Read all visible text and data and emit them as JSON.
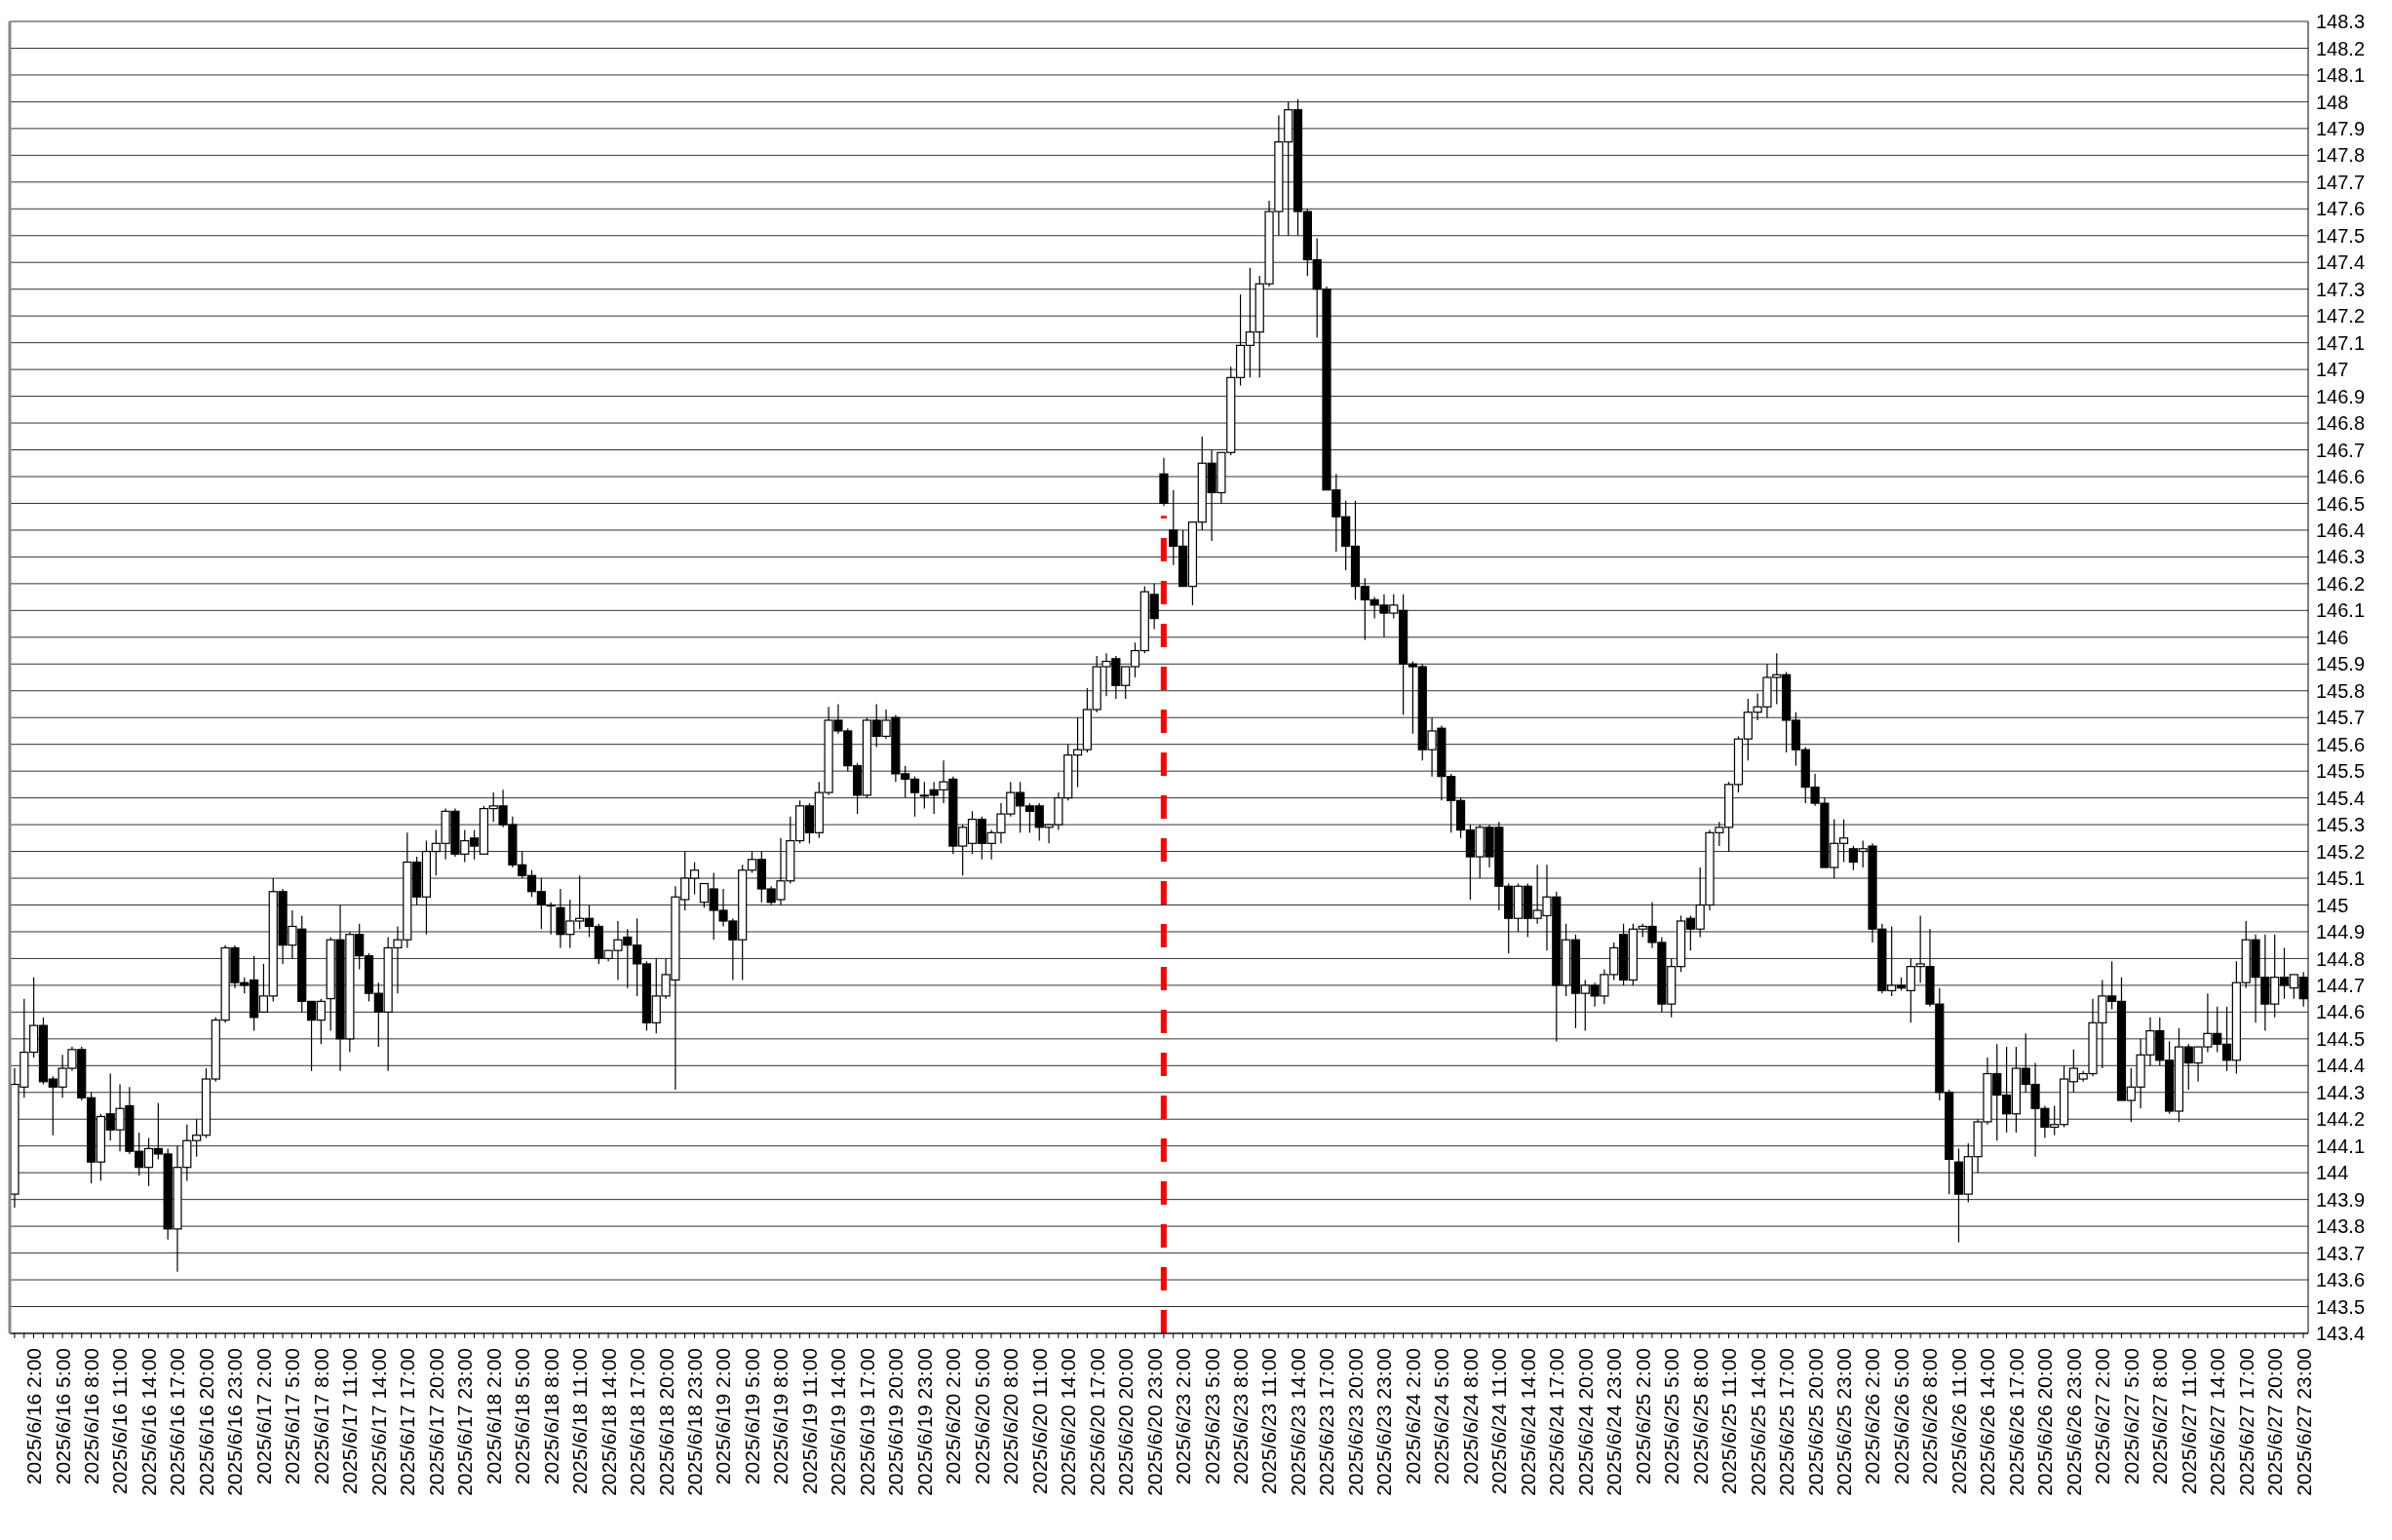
{
  "chart_data": {
    "type": "candlestick",
    "categories": [
      null,
      null,
      "2025/6/16 2:00",
      null,
      null,
      "2025/6/16 5:00",
      null,
      null,
      "2025/6/16 8:00",
      null,
      null,
      "2025/6/16 11:00",
      null,
      null,
      "2025/6/16 14:00",
      null,
      null,
      "2025/6/16 17:00",
      null,
      null,
      "2025/6/16 20:00",
      null,
      null,
      "2025/6/16 23:00",
      null,
      null,
      "2025/6/17 2:00",
      null,
      null,
      "2025/6/17 5:00",
      null,
      null,
      "2025/6/17 8:00",
      null,
      null,
      "2025/6/17 11:00",
      null,
      null,
      "2025/6/17 14:00",
      null,
      null,
      "2025/6/17 17:00",
      null,
      null,
      "2025/6/17 20:00",
      null,
      null,
      "2025/6/17 23:00",
      null,
      null,
      "2025/6/18 2:00",
      null,
      null,
      "2025/6/18 5:00",
      null,
      null,
      "2025/6/18 8:00",
      null,
      null,
      "2025/6/18 11:00",
      null,
      null,
      "2025/6/18 14:00",
      null,
      null,
      "2025/6/18 17:00",
      null,
      null,
      "2025/6/18 20:00",
      null,
      null,
      "2025/6/18 23:00",
      null,
      null,
      "2025/6/19 2:00",
      null,
      null,
      "2025/6/19 5:00",
      null,
      null,
      "2025/6/19 8:00",
      null,
      null,
      "2025/6/19 11:00",
      null,
      null,
      "2025/6/19 14:00",
      null,
      null,
      "2025/6/19 17:00",
      null,
      null,
      "2025/6/19 20:00",
      null,
      null,
      "2025/6/19 23:00",
      null,
      null,
      "2025/6/20 2:00",
      null,
      null,
      "2025/6/20 5:00",
      null,
      null,
      "2025/6/20 8:00",
      null,
      null,
      "2025/6/20 11:00",
      null,
      null,
      "2025/6/20 14:00",
      null,
      null,
      "2025/6/20 17:00",
      null,
      null,
      "2025/6/20 20:00",
      null,
      null,
      "2025/6/20 23:00",
      null,
      null,
      "2025/6/23 2:00",
      null,
      null,
      "2025/6/23 5:00",
      null,
      null,
      "2025/6/23 8:00",
      null,
      null,
      "2025/6/23 11:00",
      null,
      null,
      "2025/6/23 14:00",
      null,
      null,
      "2025/6/23 17:00",
      null,
      null,
      "2025/6/23 20:00",
      null,
      null,
      "2025/6/23 23:00",
      null,
      null,
      "2025/6/24 2:00",
      null,
      null,
      "2025/6/24 5:00",
      null,
      null,
      "2025/6/24 8:00",
      null,
      null,
      "2025/6/24 11:00",
      null,
      null,
      "2025/6/24 14:00",
      null,
      null,
      "2025/6/24 17:00",
      null,
      null,
      "2025/6/24 20:00",
      null,
      null,
      "2025/6/24 23:00",
      null,
      null,
      "2025/6/25 2:00",
      null,
      null,
      "2025/6/25 5:00",
      null,
      null,
      "2025/6/25 8:00",
      null,
      null,
      "2025/6/25 11:00",
      null,
      null,
      "2025/6/25 14:00",
      null,
      null,
      "2025/6/25 17:00",
      null,
      null,
      "2025/6/25 20:00",
      null,
      null,
      "2025/6/25 23:00",
      null,
      null,
      "2025/6/26 2:00",
      null,
      null,
      "2025/6/26 5:00",
      null,
      null,
      "2025/6/26 8:00",
      null,
      null,
      "2025/6/26 11:00",
      null,
      null,
      "2025/6/26 14:00",
      null,
      null,
      "2025/6/26 17:00",
      null,
      null,
      "2025/6/26 20:00",
      null,
      null,
      "2025/6/26 23:00",
      null,
      null,
      "2025/6/27 2:00",
      null,
      null,
      "2025/6/27 5:00",
      null,
      null,
      "2025/6/27 8:00",
      null,
      null,
      "2025/6/27 11:00",
      null,
      null,
      "2025/6/27 14:00",
      null,
      null,
      "2025/6/27 17:00",
      null,
      null,
      "2025/6/27 20:00",
      null,
      null,
      "2025/6/27 23:00"
    ],
    "ohlc": [
      [
        143.92,
        144.39,
        143.87,
        144.33
      ],
      [
        144.32,
        144.65,
        144.28,
        144.45
      ],
      [
        144.45,
        144.73,
        144.43,
        144.55
      ],
      [
        144.55,
        144.58,
        144.33,
        144.34
      ],
      [
        144.35,
        144.36,
        144.14,
        144.32
      ],
      [
        144.32,
        144.44,
        144.28,
        144.39
      ],
      [
        144.39,
        144.47,
        144.38,
        144.46
      ],
      [
        144.46,
        144.47,
        144.27,
        144.28
      ],
      [
        144.28,
        144.3,
        143.96,
        144.04
      ],
      [
        144.04,
        144.22,
        143.97,
        144.21
      ],
      [
        144.22,
        144.37,
        144.12,
        144.16
      ],
      [
        144.16,
        144.33,
        144.08,
        144.24
      ],
      [
        144.25,
        144.32,
        144.07,
        144.08
      ],
      [
        144.08,
        144.15,
        143.99,
        144.02
      ],
      [
        144.02,
        144.13,
        143.95,
        144.09
      ],
      [
        144.09,
        144.26,
        144.05,
        144.07
      ],
      [
        144.07,
        144.09,
        143.75,
        143.79
      ],
      [
        143.79,
        144.1,
        143.63,
        144.02
      ],
      [
        144.02,
        144.18,
        143.97,
        144.12
      ],
      [
        144.12,
        144.2,
        144.06,
        144.14
      ],
      [
        144.14,
        144.39,
        144.13,
        144.35
      ],
      [
        144.35,
        144.58,
        144.34,
        144.57
      ],
      [
        144.57,
        144.85,
        144.56,
        144.84
      ],
      [
        144.84,
        144.85,
        144.69,
        144.71
      ],
      [
        144.71,
        144.73,
        144.67,
        144.7
      ],
      [
        144.72,
        144.81,
        144.53,
        144.58
      ],
      [
        144.6,
        144.78,
        144.6,
        144.66
      ],
      [
        144.66,
        145.1,
        144.64,
        145.05
      ],
      [
        145.05,
        145.06,
        144.78,
        144.85
      ],
      [
        144.85,
        144.98,
        144.8,
        144.92
      ],
      [
        144.91,
        144.96,
        144.6,
        144.64
      ],
      [
        144.64,
        144.64,
        144.38,
        144.57
      ],
      [
        144.57,
        144.65,
        144.48,
        144.64
      ],
      [
        144.65,
        144.88,
        144.53,
        144.87
      ],
      [
        144.87,
        145.0,
        144.38,
        144.5
      ],
      [
        144.5,
        144.9,
        144.45,
        144.89
      ],
      [
        144.89,
        144.93,
        144.76,
        144.81
      ],
      [
        144.81,
        144.82,
        144.64,
        144.67
      ],
      [
        144.67,
        144.71,
        144.47,
        144.6
      ],
      [
        144.6,
        144.88,
        144.38,
        144.84
      ],
      [
        144.84,
        144.92,
        144.67,
        144.87
      ],
      [
        144.87,
        145.27,
        144.84,
        145.16
      ],
      [
        145.16,
        145.18,
        145.0,
        145.03
      ],
      [
        145.03,
        145.24,
        144.89,
        145.2
      ],
      [
        145.2,
        145.28,
        145.11,
        145.23
      ],
      [
        145.23,
        145.36,
        145.17,
        145.35
      ],
      [
        145.35,
        145.36,
        145.18,
        145.19
      ],
      [
        145.19,
        145.28,
        145.16,
        145.24
      ],
      [
        145.25,
        145.28,
        145.17,
        145.22
      ],
      [
        145.19,
        145.37,
        145.19,
        145.36
      ],
      [
        145.36,
        145.42,
        145.31,
        145.37
      ],
      [
        145.37,
        145.43,
        145.29,
        145.3
      ],
      [
        145.3,
        145.33,
        145.14,
        145.15
      ],
      [
        145.15,
        145.2,
        145.1,
        145.11
      ],
      [
        145.11,
        145.13,
        145.03,
        145.05
      ],
      [
        145.05,
        145.1,
        144.91,
        145.0
      ],
      [
        145.0,
        145.01,
        144.89,
        145.0
      ],
      [
        144.99,
        145.06,
        144.84,
        144.89
      ],
      [
        144.89,
        145.02,
        144.84,
        144.94
      ],
      [
        144.94,
        145.11,
        144.91,
        144.95
      ],
      [
        144.95,
        145.0,
        144.88,
        144.92
      ],
      [
        144.92,
        144.93,
        144.78,
        144.8
      ],
      [
        144.8,
        144.83,
        144.79,
        144.83
      ],
      [
        144.83,
        144.94,
        144.72,
        144.87
      ],
      [
        144.88,
        144.91,
        144.69,
        144.85
      ],
      [
        144.85,
        144.95,
        144.66,
        144.78
      ],
      [
        144.78,
        144.79,
        144.53,
        144.56
      ],
      [
        144.56,
        144.8,
        144.52,
        144.66
      ],
      [
        144.66,
        144.8,
        144.65,
        144.74
      ],
      [
        144.72,
        145.07,
        144.31,
        145.03
      ],
      [
        145.02,
        145.2,
        144.98,
        145.1
      ],
      [
        145.1,
        145.16,
        145.04,
        145.13
      ],
      [
        145.01,
        145.08,
        144.99,
        145.08
      ],
      [
        145.06,
        145.12,
        144.87,
        144.98
      ],
      [
        144.98,
        145.06,
        144.92,
        144.94
      ],
      [
        144.94,
        144.95,
        144.72,
        144.87
      ],
      [
        144.87,
        145.15,
        144.72,
        145.13
      ],
      [
        145.13,
        145.2,
        145.12,
        145.17
      ],
      [
        145.17,
        145.2,
        145.01,
        145.06
      ],
      [
        145.06,
        145.07,
        145.0,
        145.01
      ],
      [
        145.02,
        145.25,
        145.0,
        145.09
      ],
      [
        145.09,
        145.33,
        145.08,
        145.24
      ],
      [
        145.24,
        145.39,
        145.23,
        145.37
      ],
      [
        145.37,
        145.38,
        145.23,
        145.27
      ],
      [
        145.27,
        145.46,
        145.25,
        145.42
      ],
      [
        145.42,
        145.74,
        145.41,
        145.69
      ],
      [
        145.69,
        145.75,
        145.64,
        145.65
      ],
      [
        145.65,
        145.66,
        145.5,
        145.52
      ],
      [
        145.52,
        145.53,
        145.34,
        145.41
      ],
      [
        145.41,
        145.7,
        145.4,
        145.69
      ],
      [
        145.69,
        145.75,
        145.59,
        145.63
      ],
      [
        145.63,
        145.73,
        145.62,
        145.69
      ],
      [
        145.7,
        145.71,
        145.46,
        145.49
      ],
      [
        145.49,
        145.52,
        145.4,
        145.47
      ],
      [
        145.47,
        145.48,
        145.33,
        145.42
      ],
      [
        145.41,
        145.46,
        145.36,
        145.41
      ],
      [
        145.43,
        145.46,
        145.34,
        145.41
      ],
      [
        145.43,
        145.54,
        145.38,
        145.46
      ],
      [
        145.47,
        145.48,
        145.19,
        145.22
      ],
      [
        145.22,
        145.3,
        145.11,
        145.29
      ],
      [
        145.23,
        145.35,
        145.19,
        145.32
      ],
      [
        145.32,
        145.33,
        145.17,
        145.23
      ],
      [
        145.23,
        145.28,
        145.17,
        145.27
      ],
      [
        145.27,
        145.38,
        145.23,
        145.34
      ],
      [
        145.34,
        145.46,
        145.33,
        145.42
      ],
      [
        145.42,
        145.46,
        145.27,
        145.37
      ],
      [
        145.37,
        145.38,
        145.27,
        145.35
      ],
      [
        145.37,
        145.38,
        145.24,
        145.29
      ],
      [
        145.29,
        145.3,
        145.23,
        145.3
      ],
      [
        145.3,
        145.42,
        145.28,
        145.4
      ],
      [
        145.4,
        145.6,
        145.39,
        145.56
      ],
      [
        145.56,
        145.7,
        145.44,
        145.58
      ],
      [
        145.58,
        145.81,
        145.57,
        145.73
      ],
      [
        145.73,
        145.93,
        145.72,
        145.89
      ],
      [
        145.89,
        145.94,
        145.78,
        145.91
      ],
      [
        145.92,
        145.93,
        145.77,
        145.82
      ],
      [
        145.82,
        145.89,
        145.77,
        145.89
      ],
      [
        145.89,
        145.98,
        145.85,
        145.95
      ],
      [
        145.95,
        146.19,
        145.94,
        146.17
      ],
      [
        146.16,
        146.2,
        146.03,
        146.07
      ],
      [
        146.61,
        146.67,
        146.49,
        146.5
      ],
      [
        146.4,
        146.55,
        146.27,
        146.34
      ],
      [
        146.34,
        146.4,
        146.19,
        146.19
      ],
      [
        146.19,
        146.43,
        146.12,
        146.43
      ],
      [
        146.43,
        146.75,
        146.4,
        146.65
      ],
      [
        146.65,
        146.7,
        146.36,
        146.54
      ],
      [
        146.54,
        146.69,
        146.5,
        146.69
      ],
      [
        146.69,
        147.01,
        146.68,
        146.97
      ],
      [
        146.97,
        147.28,
        146.94,
        147.09
      ],
      [
        147.09,
        147.38,
        146.97,
        147.14
      ],
      [
        147.14,
        147.35,
        146.97,
        147.32
      ],
      [
        147.32,
        147.63,
        147.31,
        147.59
      ],
      [
        147.59,
        147.95,
        147.5,
        147.85
      ],
      [
        147.85,
        148.0,
        147.5,
        147.97
      ],
      [
        147.97,
        148.01,
        147.5,
        147.59
      ],
      [
        147.59,
        147.6,
        147.35,
        147.41
      ],
      [
        147.41,
        147.49,
        147.12,
        147.3
      ],
      [
        147.3,
        147.31,
        146.55,
        146.55
      ],
      [
        146.55,
        146.61,
        146.32,
        146.45
      ],
      [
        146.45,
        146.51,
        146.25,
        146.34
      ],
      [
        146.34,
        146.51,
        146.14,
        146.19
      ],
      [
        146.19,
        146.22,
        145.99,
        146.14
      ],
      [
        146.14,
        146.15,
        146.07,
        146.12
      ],
      [
        146.12,
        146.16,
        146.0,
        146.09
      ],
      [
        146.09,
        146.16,
        146.07,
        146.12
      ],
      [
        146.1,
        146.16,
        145.71,
        145.9
      ],
      [
        145.9,
        145.91,
        145.64,
        145.89
      ],
      [
        145.89,
        145.9,
        145.54,
        145.58
      ],
      [
        145.58,
        145.7,
        145.48,
        145.65
      ],
      [
        145.66,
        145.67,
        145.39,
        145.48
      ],
      [
        145.48,
        145.49,
        145.27,
        145.39
      ],
      [
        145.39,
        145.4,
        145.25,
        145.28
      ],
      [
        145.28,
        145.3,
        145.02,
        145.18
      ],
      [
        145.18,
        145.3,
        145.1,
        145.29
      ],
      [
        145.29,
        145.3,
        145.14,
        145.18
      ],
      [
        145.29,
        145.31,
        144.98,
        145.07
      ],
      [
        145.07,
        145.08,
        144.82,
        144.95
      ],
      [
        144.95,
        145.08,
        144.9,
        145.07
      ],
      [
        145.07,
        145.08,
        144.88,
        144.95
      ],
      [
        144.95,
        145.15,
        144.93,
        144.98
      ],
      [
        144.96,
        145.15,
        144.83,
        145.03
      ],
      [
        145.03,
        145.05,
        144.49,
        144.7
      ],
      [
        144.7,
        144.93,
        144.66,
        144.87
      ],
      [
        144.87,
        144.89,
        144.54,
        144.67
      ],
      [
        144.67,
        144.72,
        144.53,
        144.7
      ],
      [
        144.7,
        144.71,
        144.62,
        144.66
      ],
      [
        144.66,
        144.76,
        144.63,
        144.74
      ],
      [
        144.74,
        144.86,
        144.72,
        144.84
      ],
      [
        144.89,
        144.93,
        144.7,
        144.72
      ],
      [
        144.72,
        144.93,
        144.7,
        144.91
      ],
      [
        144.91,
        144.93,
        144.88,
        144.92
      ],
      [
        144.92,
        145.01,
        144.84,
        144.86
      ],
      [
        144.86,
        144.88,
        144.6,
        144.63
      ],
      [
        144.63,
        144.8,
        144.58,
        144.77
      ],
      [
        144.77,
        144.96,
        144.75,
        144.94
      ],
      [
        144.95,
        144.96,
        144.83,
        144.91
      ],
      [
        144.91,
        145.14,
        144.88,
        145.0
      ],
      [
        145.0,
        145.28,
        144.98,
        145.27
      ],
      [
        145.27,
        145.31,
        145.22,
        145.29
      ],
      [
        145.29,
        145.46,
        145.2,
        145.45
      ],
      [
        145.45,
        145.63,
        145.42,
        145.62
      ],
      [
        145.62,
        145.77,
        145.54,
        145.72
      ],
      [
        145.72,
        145.79,
        145.69,
        145.74
      ],
      [
        145.74,
        145.9,
        145.7,
        145.85
      ],
      [
        145.85,
        145.94,
        145.75,
        145.86
      ],
      [
        145.86,
        145.87,
        145.57,
        145.69
      ],
      [
        145.69,
        145.72,
        145.52,
        145.58
      ],
      [
        145.58,
        145.59,
        145.38,
        145.44
      ],
      [
        145.44,
        145.49,
        145.37,
        145.38
      ],
      [
        145.38,
        145.4,
        145.14,
        145.14
      ],
      [
        145.14,
        145.32,
        145.1,
        145.23
      ],
      [
        145.23,
        145.32,
        145.16,
        145.25
      ],
      [
        145.21,
        145.22,
        145.13,
        145.16
      ],
      [
        145.2,
        145.24,
        145.14,
        145.21
      ],
      [
        145.22,
        145.23,
        144.86,
        144.91
      ],
      [
        144.91,
        144.93,
        144.67,
        144.68
      ],
      [
        144.68,
        144.92,
        144.66,
        144.7
      ],
      [
        144.7,
        144.73,
        144.68,
        144.69
      ],
      [
        144.68,
        144.8,
        144.56,
        144.77
      ],
      [
        144.77,
        144.96,
        144.71,
        144.78
      ],
      [
        144.77,
        144.91,
        144.62,
        144.63
      ],
      [
        144.63,
        144.69,
        144.27,
        144.3
      ],
      [
        144.3,
        144.31,
        143.92,
        144.05
      ],
      [
        144.04,
        144.09,
        143.74,
        143.92
      ],
      [
        143.92,
        144.11,
        143.89,
        144.06
      ],
      [
        144.06,
        144.2,
        144.0,
        144.19
      ],
      [
        144.19,
        144.43,
        144.18,
        144.37
      ],
      [
        144.37,
        144.48,
        144.12,
        144.29
      ],
      [
        144.29,
        144.47,
        144.15,
        144.22
      ],
      [
        144.22,
        144.47,
        144.15,
        144.39
      ],
      [
        144.39,
        144.52,
        144.3,
        144.33
      ],
      [
        144.33,
        144.41,
        144.06,
        144.24
      ],
      [
        144.24,
        144.25,
        144.13,
        144.17
      ],
      [
        144.17,
        144.25,
        144.14,
        144.18
      ],
      [
        144.18,
        144.4,
        144.17,
        144.35
      ],
      [
        144.34,
        144.46,
        144.3,
        144.39
      ],
      [
        144.35,
        144.38,
        144.34,
        144.37
      ],
      [
        144.37,
        144.65,
        144.36,
        144.56
      ],
      [
        144.56,
        144.72,
        144.39,
        144.66
      ],
      [
        144.66,
        144.79,
        144.61,
        144.64
      ],
      [
        144.64,
        144.73,
        144.27,
        144.27
      ],
      [
        144.27,
        144.39,
        144.19,
        144.32
      ],
      [
        144.32,
        144.5,
        144.24,
        144.44
      ],
      [
        144.44,
        144.58,
        144.4,
        144.53
      ],
      [
        144.53,
        144.58,
        144.4,
        144.42
      ],
      [
        144.42,
        144.49,
        144.22,
        144.23
      ],
      [
        144.23,
        144.54,
        144.19,
        144.47
      ],
      [
        144.47,
        144.48,
        144.31,
        144.41
      ],
      [
        144.41,
        144.47,
        144.34,
        144.47
      ],
      [
        144.47,
        144.67,
        144.45,
        144.52
      ],
      [
        144.52,
        144.62,
        144.45,
        144.48
      ],
      [
        144.48,
        144.62,
        144.38,
        144.42
      ],
      [
        144.42,
        144.79,
        144.37,
        144.71
      ],
      [
        144.71,
        144.94,
        144.69,
        144.87
      ],
      [
        144.87,
        144.89,
        144.56,
        144.73
      ],
      [
        144.73,
        144.89,
        144.53,
        144.63
      ],
      [
        144.63,
        144.89,
        144.58,
        144.73
      ],
      [
        144.73,
        144.84,
        144.65,
        144.7
      ],
      [
        144.69,
        144.74,
        144.65,
        144.74
      ],
      [
        144.73,
        144.75,
        144.62,
        144.65
      ]
    ],
    "ylim": [
      143.4,
      148.3
    ],
    "yticks": [
      143.4,
      143.5,
      143.6,
      143.7,
      143.8,
      143.9,
      144,
      144.1,
      144.2,
      144.3,
      144.4,
      144.5,
      144.6,
      144.7,
      144.8,
      144.9,
      145,
      145.1,
      145.2,
      145.3,
      145.4,
      145.5,
      145.6,
      145.7,
      145.8,
      145.9,
      146,
      146.1,
      146.2,
      146.3,
      146.4,
      146.5,
      146.6,
      146.7,
      146.8,
      146.9,
      147,
      147.1,
      147.2,
      147.3,
      147.4,
      147.5,
      147.6,
      147.7,
      147.8,
      147.9,
      148,
      148.1,
      148.2,
      148.3
    ],
    "grid": "y"
  }
}
